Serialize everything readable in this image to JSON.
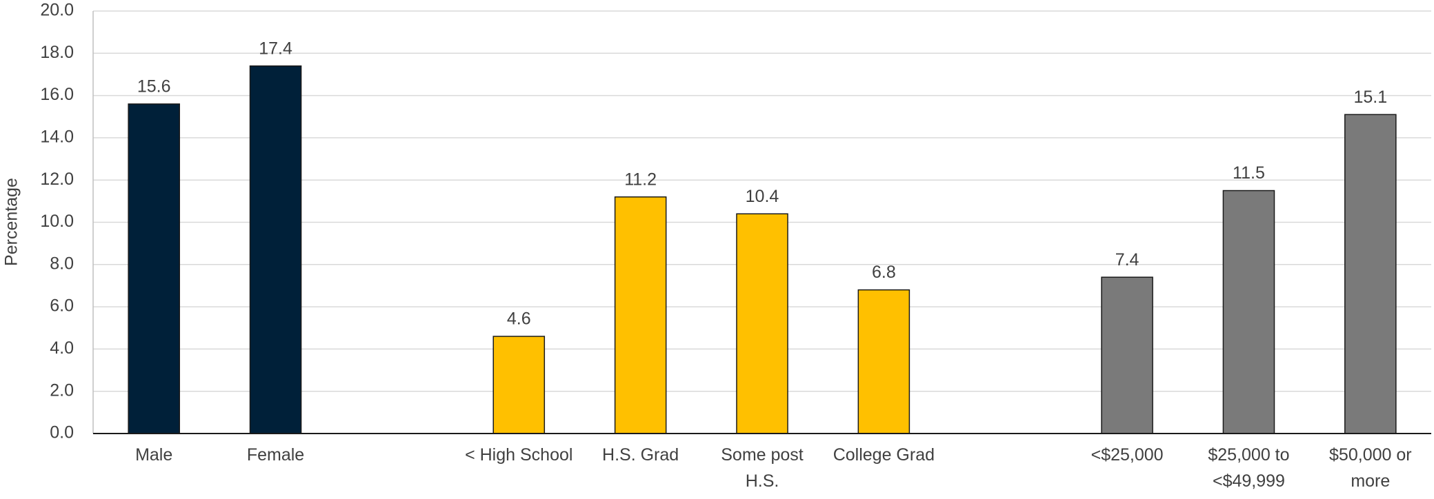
{
  "chart_data": {
    "type": "bar",
    "y_label": "Percentage",
    "categories": [
      "Male",
      "Female",
      null,
      "< High School",
      "H.S. Grad",
      "Some post H.S.",
      "College Grad",
      null,
      "<$25,000",
      "$25,000 to <$49,999",
      "$50,000 or more"
    ],
    "values": [
      15.6,
      17.4,
      null,
      4.6,
      11.2,
      10.4,
      6.8,
      null,
      7.4,
      11.5,
      15.1
    ],
    "colors": [
      "#002039",
      "#002039",
      null,
      "#ffc000",
      "#ffc000",
      "#ffc000",
      "#ffc000",
      null,
      "#7a7a7a",
      "#7a7a7a",
      "#7a7a7a"
    ],
    "ylim": [
      0,
      20
    ],
    "yticks": [
      {
        "value": 0,
        "label": "0.0"
      },
      {
        "value": 2,
        "label": "2.0"
      },
      {
        "value": 4,
        "label": "4.0"
      },
      {
        "value": 6,
        "label": "6.0"
      },
      {
        "value": 8,
        "label": "8.0"
      },
      {
        "value": 10,
        "label": "10.0"
      },
      {
        "value": 12,
        "label": "12.0"
      },
      {
        "value": 14,
        "label": "14.0"
      },
      {
        "value": 16,
        "label": "16.0"
      },
      {
        "value": 18,
        "label": "18.0"
      },
      {
        "value": 20,
        "label": "20.0"
      }
    ],
    "grid": true
  }
}
